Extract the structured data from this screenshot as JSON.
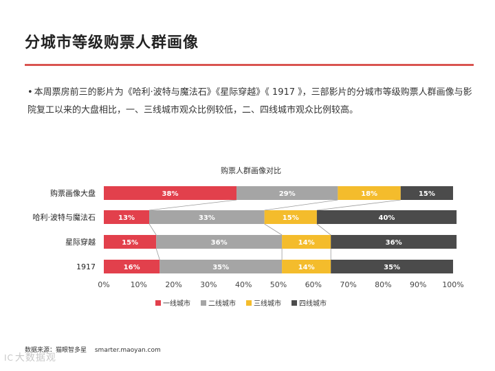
{
  "page": {
    "title": "分城市等级购票人群画像",
    "bullet": "本周票房前三的影片为《哈利·波特与魔法石》《星际穿越》《 1917 》，三部影片的分城市等级购票人群画像与影院复工以来的大盘相比，一、三线城市观众比例较低，二、四线城市观众比例较高。",
    "source": "数据来源：猫眼智多星　 smarter.maoyan.com",
    "watermark": "大数据观"
  },
  "colors": {
    "accent": "#d9534f",
    "tier1": "#e2404c",
    "tier2": "#a5a5a5",
    "tier3": "#f4bc2c",
    "tier4": "#4b4b4b"
  },
  "chart_data": {
    "type": "bar",
    "orientation": "horizontal",
    "stacked": true,
    "percent": true,
    "title": "购票人群画像对比",
    "categories": [
      "购票画像大盘",
      "哈利·波特与魔法石",
      "星际穿越",
      "1917"
    ],
    "series": [
      {
        "name": "一线城市",
        "values": [
          38,
          13,
          15,
          16
        ]
      },
      {
        "name": "二线城市",
        "values": [
          29,
          33,
          36,
          35
        ]
      },
      {
        "name": "三线城市",
        "values": [
          18,
          15,
          14,
          14
        ]
      },
      {
        "name": "四线城市",
        "values": [
          15,
          40,
          36,
          35
        ]
      }
    ],
    "xlim": [
      0,
      100
    ],
    "xticks": [
      "0%",
      "10%",
      "20%",
      "30%",
      "40%",
      "50%",
      "60%",
      "70%",
      "80%",
      "90%",
      "100%"
    ],
    "legend_position": "bottom",
    "series_lines": true
  }
}
